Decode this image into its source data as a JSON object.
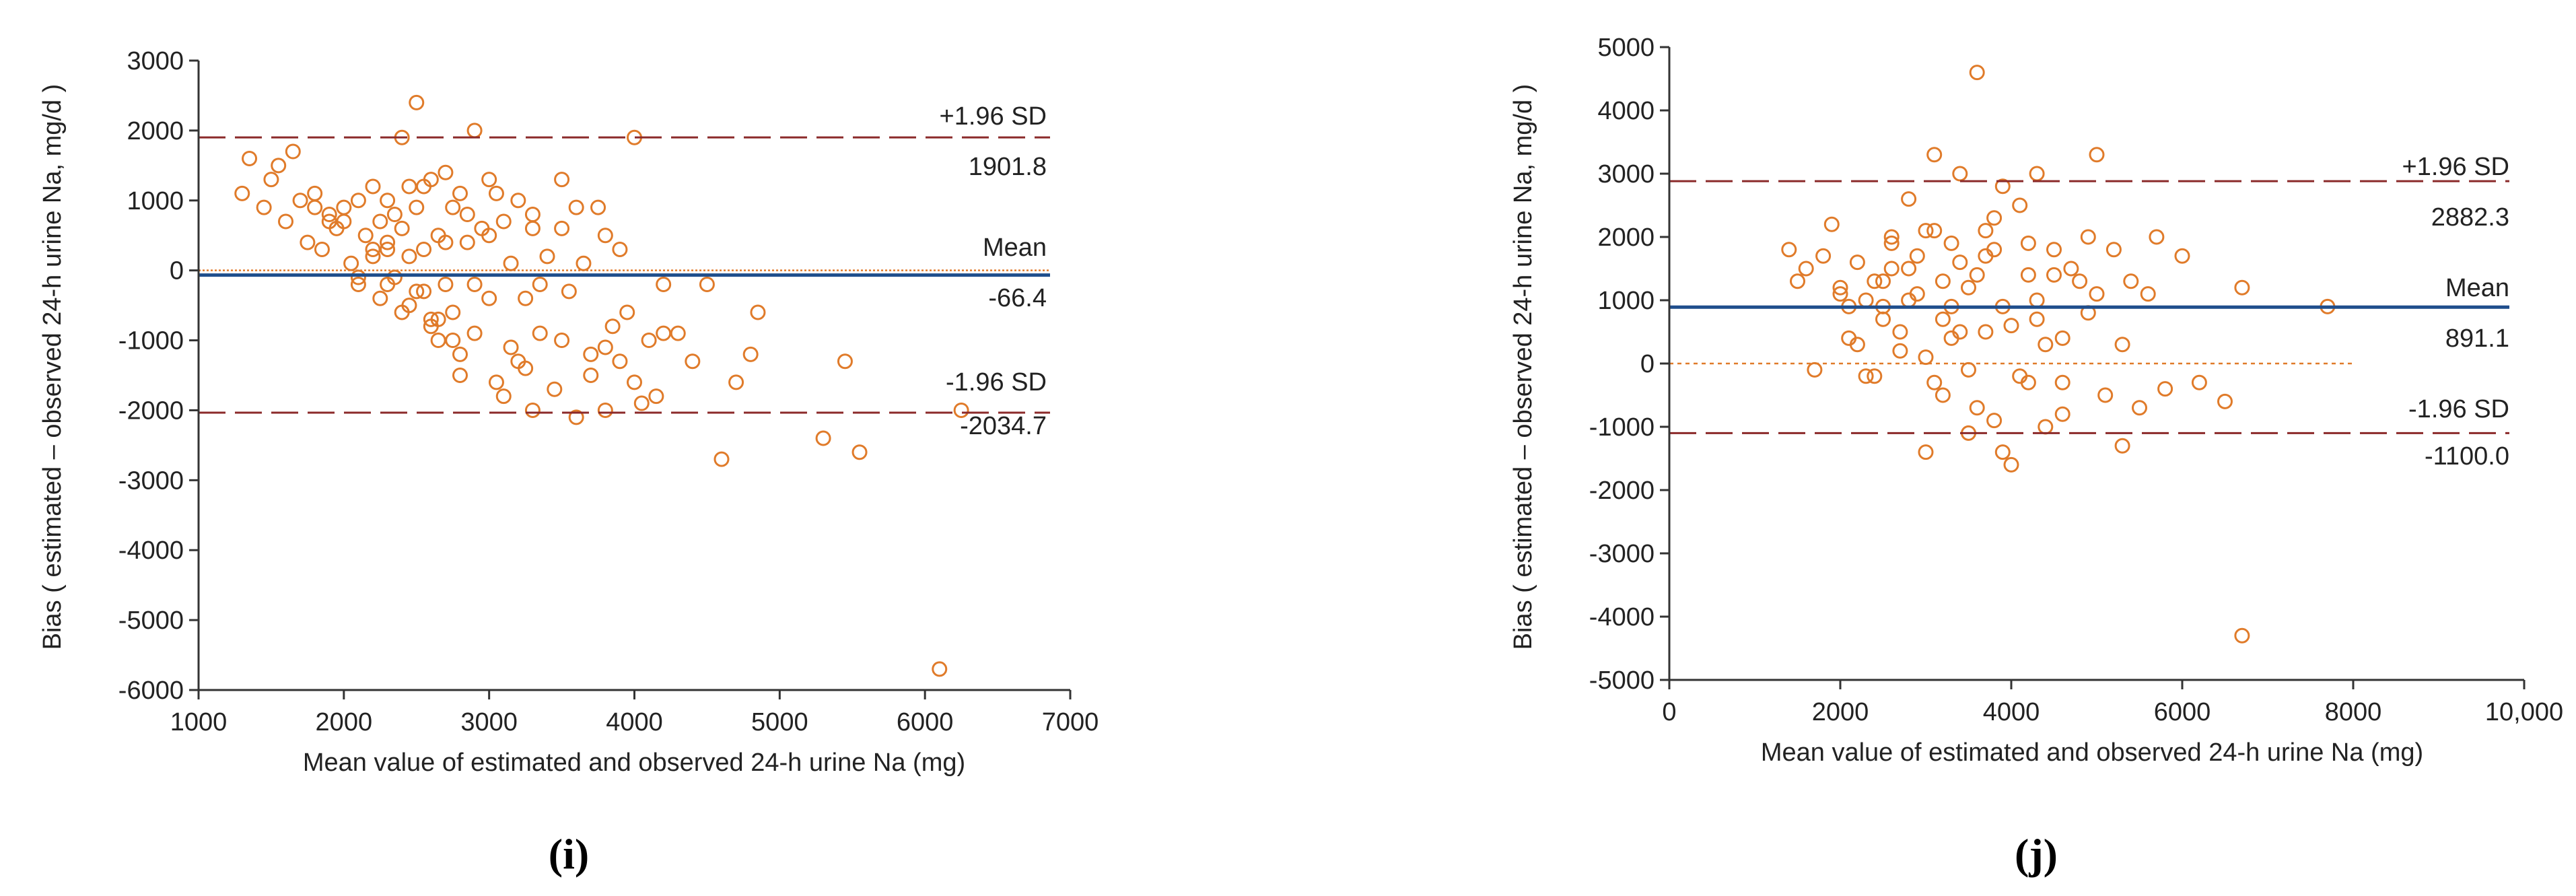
{
  "chart_data": [
    {
      "type": "scatter",
      "panel_label": "(i)",
      "xlabel": "Mean value of estimated and observed 24-h urine Na (mg)",
      "ylabel": "Bias ( estimated – observed 24-h urine Na, mg/d )",
      "xlim": [
        1000,
        7000
      ],
      "ylim": [
        -6000,
        3000
      ],
      "x_ticks": [
        "1000",
        "2000",
        "3000",
        "4000",
        "5000",
        "6000",
        "7000"
      ],
      "y_ticks": [
        "3000",
        "2000",
        "1000",
        "0",
        "-1000",
        "-2000",
        "-3000",
        "-4000",
        "-5000",
        "-6000"
      ],
      "mean": -66.4,
      "upper_loa": 1901.8,
      "lower_loa": -2034.7,
      "labels": {
        "upper": "+1.96 SD",
        "mean": "Mean",
        "lower": "-1.96 SD",
        "upper_val": "1901.8",
        "mean_val": "-66.4",
        "lower_val": "-2034.7"
      },
      "zero_line": true,
      "x": [
        1300,
        1350,
        1450,
        1500,
        1550,
        1600,
        1650,
        1700,
        1750,
        1800,
        1850,
        1900,
        1950,
        2000,
        2050,
        2100,
        2100,
        2150,
        2200,
        2200,
        2250,
        2250,
        2300,
        2300,
        2350,
        2350,
        2400,
        2400,
        2450,
        2450,
        2500,
        2500,
        2550,
        2550,
        2600,
        2600,
        2650,
        2650,
        2700,
        2700,
        2750,
        2750,
        2800,
        2800,
        2850,
        2900,
        2900,
        2950,
        3000,
        3000,
        3050,
        3100,
        3100,
        3150,
        3200,
        3200,
        3250,
        3300,
        3300,
        3350,
        3400,
        3450,
        3500,
        3500,
        3550,
        3600,
        3650,
        3700,
        3750,
        3800,
        3800,
        3850,
        3900,
        3950,
        4000,
        4050,
        4100,
        4150,
        4200,
        4300,
        4400,
        4500,
        4600,
        4700,
        4800,
        4850,
        5300,
        5450,
        5550,
        6100,
        6250,
        2300,
        2500,
        2650,
        2800,
        2900,
        3050,
        3300,
        3700,
        1900,
        2100,
        2400,
        2600,
        2750,
        3000,
        3250,
        3500,
        3900,
        4200,
        2200,
        2450,
        2700,
        3150,
        3600,
        4000,
        1800,
        2000,
        2300,
        2550,
        2850,
        3350,
        3800
      ],
      "y": [
        1100,
        1600,
        900,
        1300,
        1500,
        700,
        1700,
        1000,
        400,
        1100,
        300,
        800,
        600,
        900,
        100,
        1000,
        -200,
        500,
        200,
        1200,
        700,
        -400,
        1000,
        300,
        800,
        -100,
        1900,
        600,
        200,
        -500,
        2400,
        900,
        300,
        -300,
        1300,
        -800,
        500,
        -1000,
        1400,
        -200,
        900,
        -600,
        1100,
        -1200,
        400,
        2000,
        -900,
        600,
        -400,
        1300,
        -1600,
        700,
        -1800,
        100,
        1000,
        -1300,
        -400,
        600,
        -2000,
        -900,
        200,
        -1700,
        1300,
        -1000,
        -300,
        -2100,
        100,
        -1500,
        900,
        -1100,
        -2000,
        -800,
        -1300,
        -600,
        -1600,
        -1900,
        -1000,
        -1800,
        -200,
        -900,
        -1300,
        -200,
        -2700,
        -1600,
        -1200,
        -600,
        -2400,
        -1300,
        -2600,
        -5700,
        -2000,
        400,
        -300,
        -700,
        -1500,
        -200,
        1100,
        800,
        -1200,
        700,
        -100,
        -600,
        -700,
        -1000,
        500,
        -1400,
        600,
        300,
        -900,
        300,
        1200,
        400,
        -1100,
        900,
        1900,
        900,
        700,
        -200,
        1200,
        800,
        -200,
        500
      ],
      "note": "approximate point cloud read from the plot"
    },
    {
      "type": "scatter",
      "panel_label": "(j)",
      "xlabel": "Mean value of estimated and observed 24-h urine Na (mg)",
      "ylabel": "Bias ( estimated – observed 24-h urine Na, mg/d )",
      "xlim": [
        0,
        10000
      ],
      "ylim": [
        -5000,
        5000
      ],
      "x_ticks": [
        "0",
        "2000",
        "4000",
        "6000",
        "8000",
        "10,000"
      ],
      "y_ticks": [
        "5000",
        "4000",
        "3000",
        "2000",
        "1000",
        "0",
        "-1000",
        "-2000",
        "-3000",
        "-4000",
        "-5000"
      ],
      "mean": 891.1,
      "upper_loa": 2882.3,
      "lower_loa": -1100.0,
      "labels": {
        "upper": "+1.96 SD",
        "mean": "Mean",
        "lower": "-1.96 SD",
        "upper_val": "2882.3",
        "mean_val": "891.1",
        "lower_val": "-1100.0"
      },
      "zero_line": true,
      "x": [
        1400,
        1500,
        1600,
        1700,
        1800,
        1900,
        2000,
        2100,
        2200,
        2300,
        2400,
        2500,
        2600,
        2700,
        2800,
        2900,
        3000,
        3100,
        3200,
        3300,
        3400,
        3500,
        3600,
        3700,
        3800,
        3900,
        4000,
        4100,
        4200,
        4300,
        4400,
        4500,
        4600,
        4700,
        4800,
        4900,
        5000,
        5100,
        5200,
        5300,
        5400,
        5500,
        5600,
        5700,
        5800,
        6000,
        6200,
        6500,
        6700,
        7700,
        3600,
        3100,
        4900,
        2300,
        2500,
        2700,
        2900,
        3100,
        3300,
        3500,
        3700,
        3900,
        4100,
        4300,
        4500,
        2200,
        2400,
        2600,
        2800,
        3000,
        3200,
        3400,
        3600,
        3800,
        4000,
        4200,
        4400,
        4600,
        2100,
        2600,
        3000,
        3400,
        3800,
        4200,
        4600,
        5000,
        3300,
        3500,
        3700,
        6700,
        2000,
        2500,
        2800,
        3200,
        3900,
        4300,
        5300
      ],
      "y": [
        1800,
        1300,
        1500,
        -100,
        1700,
        2200,
        1200,
        400,
        1600,
        -200,
        1300,
        900,
        2000,
        500,
        2600,
        1100,
        -1400,
        3300,
        700,
        1900,
        3000,
        1200,
        4600,
        2100,
        -900,
        2800,
        -1600,
        2500,
        1400,
        3000,
        -1000,
        1800,
        -300,
        1500,
        1300,
        2000,
        3300,
        -500,
        1800,
        -1300,
        1300,
        -700,
        1100,
        2000,
        -400,
        1700,
        -300,
        -600,
        1200,
        900,
        1400,
        -300,
        800,
        1000,
        700,
        200,
        1700,
        2100,
        400,
        -100,
        1700,
        900,
        -200,
        700,
        1400,
        300,
        -200,
        1500,
        1000,
        100,
        1300,
        500,
        -700,
        1800,
        600,
        -300,
        300,
        -800,
        900,
        1900,
        2100,
        1600,
        2300,
        1900,
        400,
        1100,
        900,
        -1100,
        500,
        -4300,
        1100,
        1300,
        1500,
        -500,
        -1400,
        1000,
        300
      ],
      "note": "approximate point cloud read from the plot"
    }
  ]
}
